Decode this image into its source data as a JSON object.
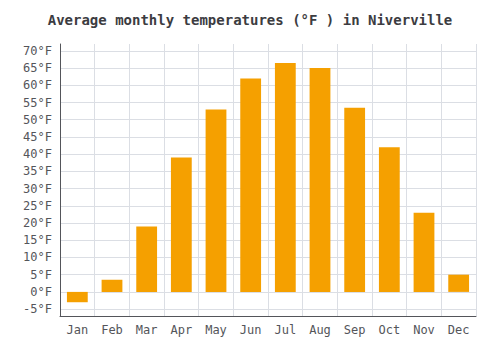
{
  "chart_data": {
    "type": "bar",
    "title": "Average monthly temperatures (°F ) in Niverville",
    "categories": [
      "Jan",
      "Feb",
      "Mar",
      "Apr",
      "May",
      "Jun",
      "Jul",
      "Aug",
      "Sep",
      "Oct",
      "Nov",
      "Dec"
    ],
    "values": [
      -3,
      3.5,
      19,
      39,
      53,
      62,
      66.5,
      65,
      53.5,
      42,
      23,
      5
    ],
    "color": "#F5A000",
    "ylim": [
      -7,
      72
    ],
    "yticks": [
      {
        "value": -5,
        "label": "-5°F"
      },
      {
        "value": 0,
        "label": "0°F"
      },
      {
        "value": 5,
        "label": "5°F"
      },
      {
        "value": 10,
        "label": "10°F"
      },
      {
        "value": 15,
        "label": "15°F"
      },
      {
        "value": 20,
        "label": "20°F"
      },
      {
        "value": 25,
        "label": "25°F"
      },
      {
        "value": 30,
        "label": "30°F"
      },
      {
        "value": 35,
        "label": "35°F"
      },
      {
        "value": 40,
        "label": "40°F"
      },
      {
        "value": 45,
        "label": "45°F"
      },
      {
        "value": 50,
        "label": "50°F"
      },
      {
        "value": 55,
        "label": "55°F"
      },
      {
        "value": 60,
        "label": "60°F"
      },
      {
        "value": 65,
        "label": "65°F"
      },
      {
        "value": 70,
        "label": "70°F"
      }
    ],
    "grid": true
  }
}
